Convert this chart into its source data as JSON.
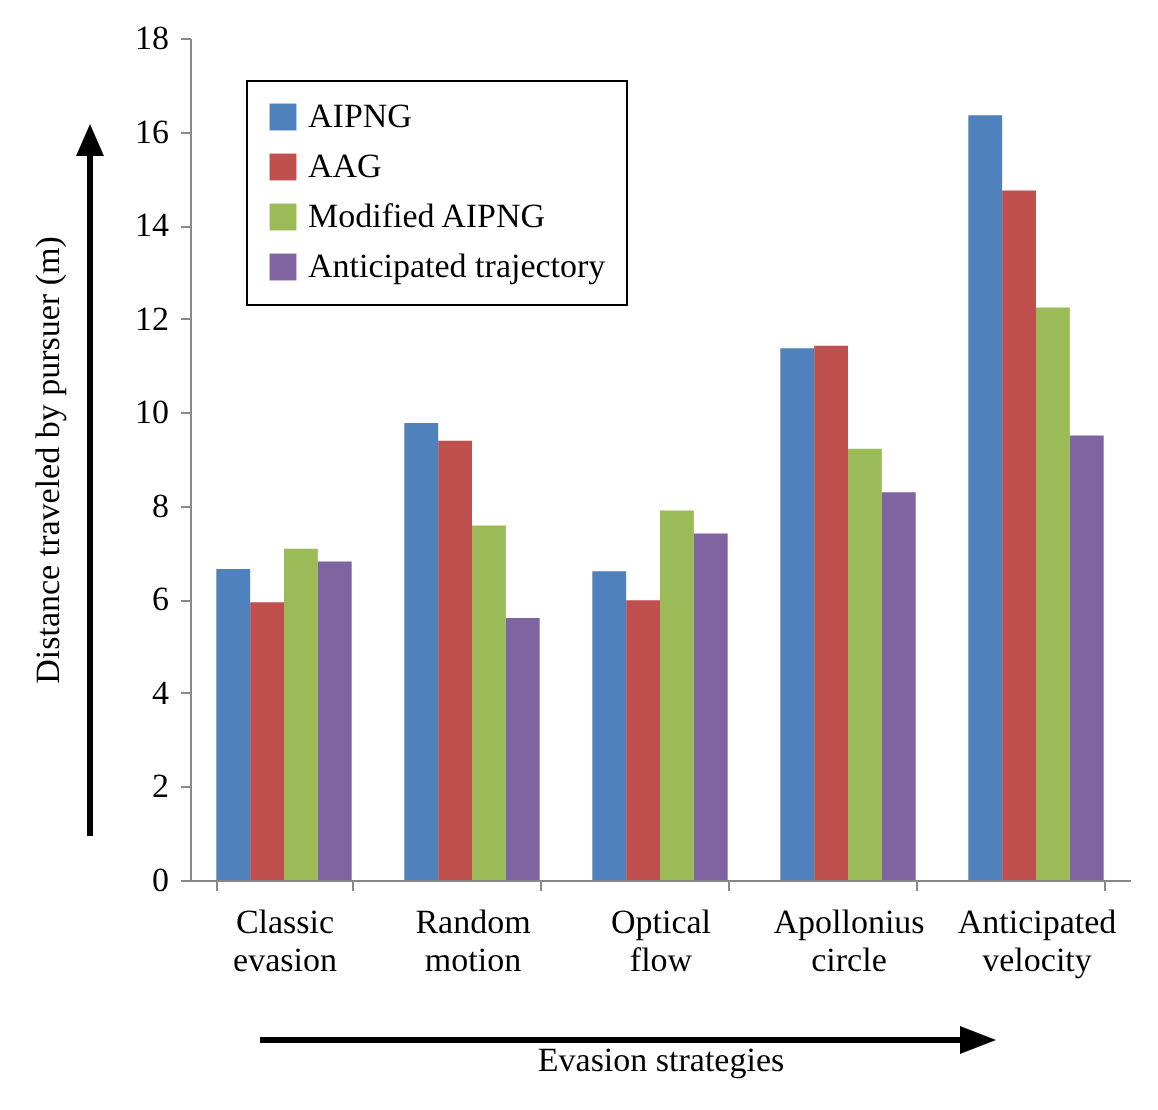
{
  "chart_data": {
    "type": "bar",
    "xlabel": "Evasion strategies",
    "ylabel": "Distance traveled by pursuer (m)",
    "categories": [
      "Classic evasion",
      "Random motion",
      "Optical flow",
      "Apollonius circle",
      "Anticipated velocity"
    ],
    "series": [
      {
        "name": "AIPNG",
        "color": "#4f81bd",
        "values": [
          6.65,
          9.77,
          6.6,
          11.37,
          16.35
        ]
      },
      {
        "name": "AAG",
        "color": "#c0504d",
        "values": [
          5.94,
          9.39,
          5.98,
          11.42,
          14.74
        ]
      },
      {
        "name": "Modified AIPNG",
        "color": "#9bbb59",
        "values": [
          7.08,
          7.58,
          7.9,
          9.22,
          12.24
        ]
      },
      {
        "name": "Anticipated trajectory",
        "color": "#8064a2",
        "values": [
          6.81,
          5.6,
          7.41,
          8.29,
          9.5
        ]
      }
    ],
    "ylim": [
      0,
      18
    ],
    "yticks": [
      0,
      2,
      4,
      6,
      8,
      10,
      12,
      14,
      16,
      18
    ],
    "grid": false,
    "legend": "top left"
  }
}
